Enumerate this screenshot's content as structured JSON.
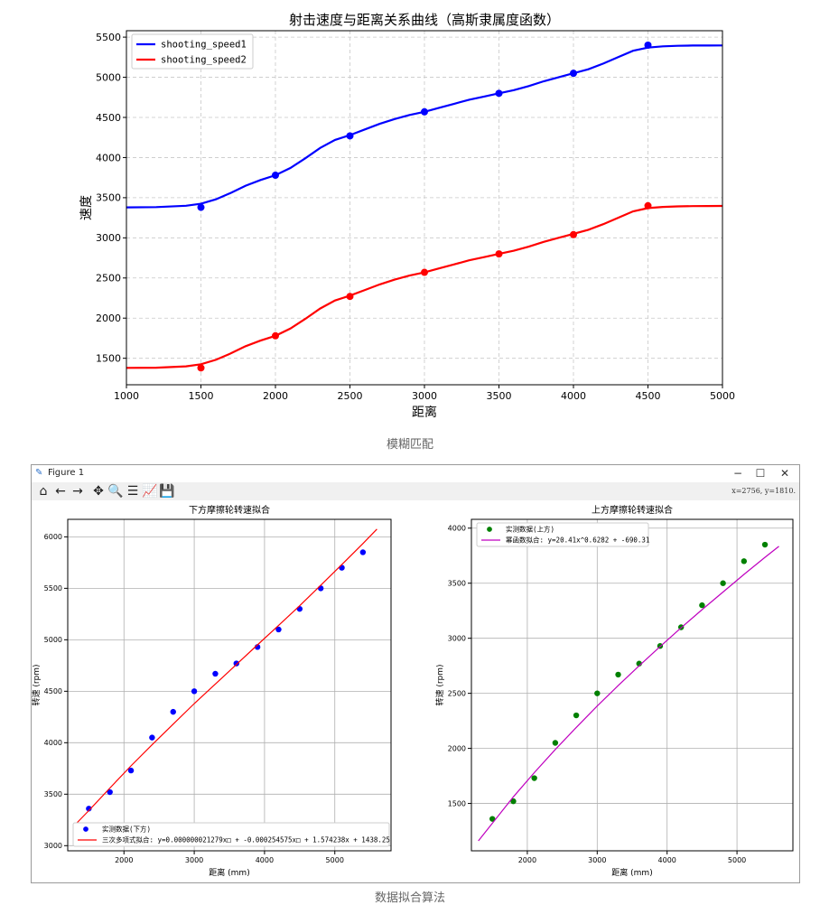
{
  "captions": {
    "top": "模糊匹配",
    "bottom": "数据拟合算法"
  },
  "window": {
    "title": "Figure 1",
    "coords": "x=2756, y=1810.",
    "controls": {
      "minimize": "−",
      "maximize": "☐",
      "close": "✕"
    },
    "toolbar": [
      {
        "name": "home-icon",
        "glyph": "⌂"
      },
      {
        "name": "back-icon",
        "glyph": "←"
      },
      {
        "name": "forward-icon",
        "glyph": "→"
      },
      {
        "name": "pan-icon",
        "glyph": "✥"
      },
      {
        "name": "zoom-icon",
        "glyph": "🔍"
      },
      {
        "name": "configure-subplots-icon",
        "glyph": "☰"
      },
      {
        "name": "edit-axis-icon",
        "glyph": "📈"
      },
      {
        "name": "save-icon",
        "glyph": "💾"
      }
    ]
  },
  "chart_data": [
    {
      "type": "line",
      "title": "射击速度与距离关系曲线（高斯隶属度函数）",
      "xlabel": "距离",
      "ylabel": "速度",
      "xlim": [
        1000,
        5000
      ],
      "ylim": [
        1170,
        5580
      ],
      "xticks": [
        1000,
        1500,
        2000,
        2500,
        3000,
        3500,
        4000,
        4500,
        5000
      ],
      "yticks": [
        1500,
        2000,
        2500,
        3000,
        3500,
        4000,
        4500,
        5000,
        5500
      ],
      "grid": true,
      "legend": "top-left",
      "series": [
        {
          "name": "shooting_speed1",
          "color": "#0000ff",
          "points_x": [
            1500,
            2000,
            2500,
            3000,
            3500,
            4000,
            4500
          ],
          "points_y": [
            3380,
            3780,
            4270,
            4570,
            4800,
            5050,
            5400
          ],
          "curve_x": [
            1000,
            1200,
            1400,
            1500,
            1600,
            1700,
            1800,
            1900,
            2000,
            2100,
            2200,
            2300,
            2400,
            2500,
            2600,
            2700,
            2800,
            2900,
            3000,
            3100,
            3200,
            3300,
            3400,
            3500,
            3600,
            3700,
            3800,
            3900,
            4000,
            4100,
            4200,
            4300,
            4400,
            4500,
            4600,
            4700,
            4800,
            4900,
            5000
          ],
          "curve_y": [
            3380,
            3383,
            3400,
            3425,
            3480,
            3560,
            3650,
            3720,
            3780,
            3870,
            3990,
            4120,
            4220,
            4280,
            4350,
            4420,
            4480,
            4530,
            4570,
            4620,
            4670,
            4720,
            4760,
            4800,
            4840,
            4890,
            4950,
            5000,
            5050,
            5100,
            5170,
            5250,
            5330,
            5370,
            5385,
            5392,
            5395,
            5396,
            5397
          ]
        },
        {
          "name": "shooting_speed2",
          "color": "#ff0000",
          "points_x": [
            1500,
            2000,
            2500,
            3000,
            3500,
            4000,
            4500
          ],
          "points_y": [
            1380,
            1780,
            2270,
            2570,
            2800,
            3040,
            3400
          ],
          "curve_x": [
            1000,
            1200,
            1400,
            1500,
            1600,
            1700,
            1800,
            1900,
            2000,
            2100,
            2200,
            2300,
            2400,
            2500,
            2600,
            2700,
            2800,
            2900,
            3000,
            3100,
            3200,
            3300,
            3400,
            3500,
            3600,
            3700,
            3800,
            3900,
            4000,
            4100,
            4200,
            4300,
            4400,
            4500,
            4600,
            4700,
            4800,
            4900,
            5000
          ],
          "curve_y": [
            1380,
            1383,
            1400,
            1425,
            1480,
            1560,
            1650,
            1720,
            1780,
            1870,
            1990,
            2120,
            2220,
            2280,
            2350,
            2420,
            2480,
            2530,
            2570,
            2620,
            2670,
            2720,
            2760,
            2800,
            2840,
            2890,
            2950,
            3000,
            3050,
            3100,
            3170,
            3250,
            3330,
            3370,
            3385,
            3392,
            3395,
            3396,
            3397
          ]
        }
      ]
    },
    {
      "type": "scatter",
      "title": "下方摩擦轮转速拟合",
      "xlabel": "距离 (mm)",
      "ylabel": "转速 (rpm)",
      "xlim": [
        1200,
        5800
      ],
      "ylim": [
        2950,
        6170
      ],
      "xticks": [
        2000,
        3000,
        4000,
        5000
      ],
      "yticks": [
        3000,
        3500,
        4000,
        4500,
        5000,
        5500,
        6000
      ],
      "grid": true,
      "legend": "bottom-left",
      "series": [
        {
          "name": "实测数据(下方)",
          "color": "#0000ff",
          "x": [
            1500,
            1800,
            2100,
            2400,
            2700,
            3000,
            3300,
            3600,
            3900,
            4200,
            4500,
            4800,
            5100,
            5400
          ],
          "y": [
            3360,
            3520,
            3730,
            4050,
            4300,
            4500,
            4670,
            4770,
            4930,
            5100,
            5300,
            5500,
            5700,
            5850
          ]
        },
        {
          "name": "三次多项式拟合: y=0.000000021279x□ + -0.000254575x□ + 1.574238x + 1438.25",
          "color": "#ff0000",
          "fit_x": [
            1300,
            1500,
            1800,
            2100,
            2400,
            2700,
            3000,
            3300,
            3600,
            3900,
            4200,
            4500,
            4800,
            5100,
            5400,
            5600
          ],
          "fit_y": [
            3200,
            3340,
            3560,
            3775,
            3980,
            4180,
            4380,
            4570,
            4760,
            4950,
            5140,
            5330,
            5530,
            5730,
            5935,
            6075
          ]
        }
      ]
    },
    {
      "type": "scatter",
      "title": "上方摩擦轮转速拟合",
      "xlabel": "距离 (mm)",
      "ylabel": "转速 (rpm)",
      "xlim": [
        1200,
        5800
      ],
      "ylim": [
        1070,
        4080
      ],
      "xticks": [
        2000,
        3000,
        4000,
        5000
      ],
      "yticks": [
        1500,
        2000,
        2500,
        3000,
        3500,
        4000
      ],
      "grid": true,
      "legend": "top-left",
      "series": [
        {
          "name": "实测数据(上方)",
          "color": "#008000",
          "x": [
            1500,
            1800,
            2100,
            2400,
            2700,
            3000,
            3300,
            3600,
            3900,
            4200,
            4500,
            4800,
            5100,
            5400
          ],
          "y": [
            1360,
            1520,
            1730,
            2050,
            2300,
            2500,
            2670,
            2770,
            2930,
            3100,
            3300,
            3500,
            3700,
            3850
          ]
        },
        {
          "name": "幂函数拟合: y=20.41x^0.6282 + -690.31",
          "color": "#bf00bf",
          "fit_x": [
            1300,
            1500,
            1800,
            2100,
            2400,
            2700,
            3000,
            3300,
            3600,
            3900,
            4200,
            4500,
            4800,
            5100,
            5400,
            5600
          ],
          "fit_y": [
            1160,
            1320,
            1560,
            1780,
            1990,
            2190,
            2385,
            2570,
            2750,
            2925,
            3095,
            3260,
            3420,
            3580,
            3735,
            3835
          ]
        }
      ]
    }
  ]
}
